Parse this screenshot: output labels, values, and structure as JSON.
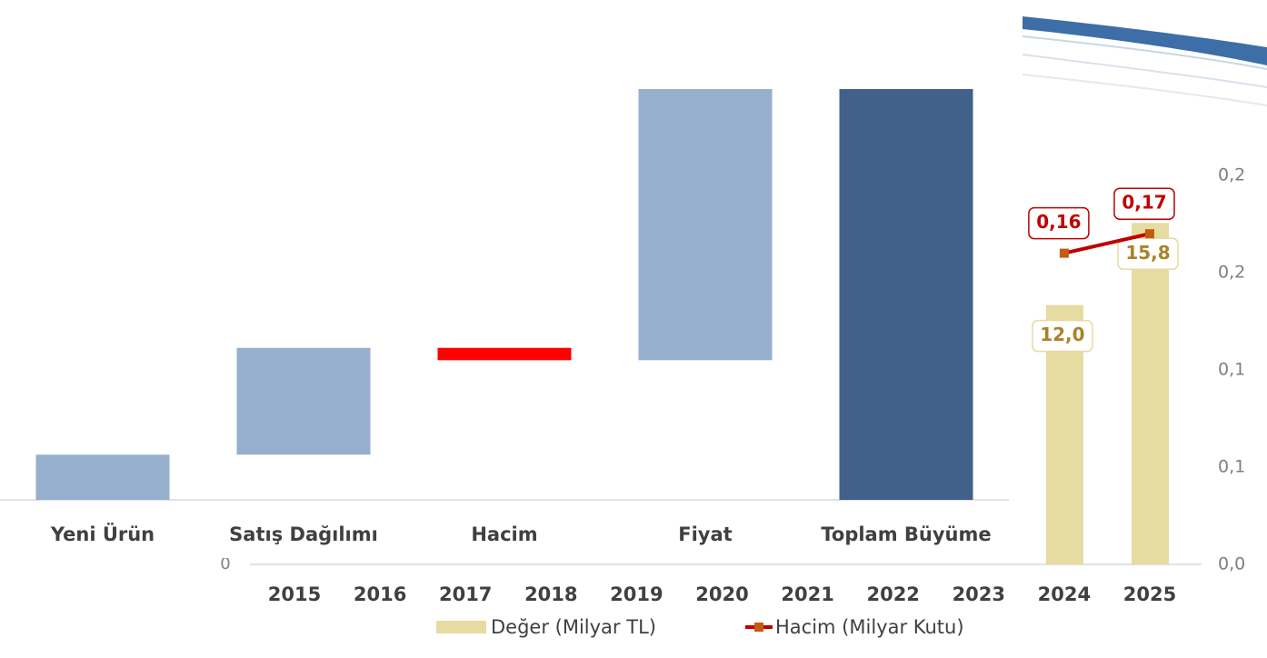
{
  "chart_data": [
    {
      "type": "combo",
      "categories": [
        "2015",
        "2016",
        "2017",
        "2018",
        "2019",
        "2020",
        "2021",
        "2022",
        "2023",
        "2024",
        "2025"
      ],
      "series": [
        {
          "name": "Değer (Milyar TL)",
          "type": "bar",
          "color": "#e6dba1",
          "label_color": "#a9822a",
          "values": [
            null,
            null,
            null,
            null,
            null,
            null,
            null,
            null,
            null,
            12.0,
            15.8
          ],
          "value_labels": [
            null,
            null,
            null,
            null,
            null,
            null,
            null,
            null,
            null,
            "12,0",
            "15,8"
          ]
        },
        {
          "name": "Hacim (Milyar Kutu)",
          "type": "line",
          "axis": "y2",
          "color": "#c00000",
          "marker_color": "#c55a11",
          "values": [
            null,
            null,
            null,
            null,
            null,
            null,
            null,
            null,
            null,
            0.16,
            0.17
          ],
          "value_labels": [
            null,
            null,
            null,
            null,
            null,
            null,
            null,
            null,
            null,
            "0,16",
            "0,17"
          ]
        }
      ],
      "ylim": [
        0,
        18
      ],
      "yticks": [
        0
      ],
      "y2lim": [
        0,
        0.2
      ],
      "y2ticks": [
        {
          "value": 0,
          "label": "0,0"
        },
        {
          "value": 0.05,
          "label": "0,1"
        },
        {
          "value": 0.1,
          "label": "0,1"
        },
        {
          "value": 0.15,
          "label": "0,2"
        },
        {
          "value": 0.2,
          "label": "0,2"
        }
      ],
      "legend": "bottom"
    },
    {
      "type": "waterfall",
      "categories": [
        "Yeni Ürün",
        "Satış Dağılımı",
        "Hacim",
        "Fiyat",
        "Toplam Büyüme"
      ],
      "values": [
        11,
        26,
        -3,
        66,
        100
      ],
      "colors": [
        "#95afcd",
        "#95afcd",
        "#ff0000",
        "#95afcd",
        "#41618a"
      ],
      "last_is_total": true
    }
  ]
}
